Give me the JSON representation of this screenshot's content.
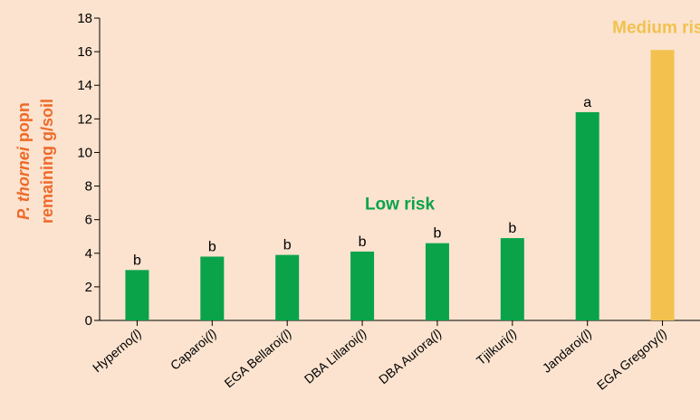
{
  "chart_data": {
    "type": "bar",
    "ylabel": {
      "line1_italic": "P. thornei",
      "line1_rest": " popn",
      "line2": "remaining g/soil"
    },
    "ylim": [
      0,
      18
    ],
    "yticks": [
      0,
      2,
      4,
      6,
      8,
      10,
      12,
      14,
      16,
      18
    ],
    "categories": [
      {
        "name": "Hyperno",
        "suffix": "(l)"
      },
      {
        "name": "Caparoi",
        "suffix": "(l)"
      },
      {
        "name": "EGA Bellaroi",
        "suffix": "(l)"
      },
      {
        "name": "DBA Lillaroi",
        "suffix": "(l)"
      },
      {
        "name": "DBA Aurora",
        "suffix": "(l)"
      },
      {
        "name": "Tjilkuri",
        "suffix": "(l)"
      },
      {
        "name": "Jandaroi",
        "suffix": "(l)"
      },
      {
        "name": "EGA Gregory",
        "suffix": "(l)"
      }
    ],
    "values": [
      3.0,
      3.8,
      3.9,
      4.1,
      4.6,
      4.9,
      12.4,
      16.1
    ],
    "letters": [
      "b",
      "b",
      "b",
      "b",
      "b",
      "b",
      "a",
      ""
    ],
    "bar_colors": [
      "#0aa34a",
      "#0aa34a",
      "#0aa34a",
      "#0aa34a",
      "#0aa34a",
      "#0aa34a",
      "#0aa34a",
      "#f2c14e"
    ],
    "annotations": [
      {
        "text": "Low risk",
        "color": "#0aa34a",
        "x_category": 3.5,
        "y": 6.6
      },
      {
        "text": "Medium risk",
        "color": "#f2c14e",
        "x_category": 7,
        "y": 17.1
      }
    ],
    "grid": false
  }
}
